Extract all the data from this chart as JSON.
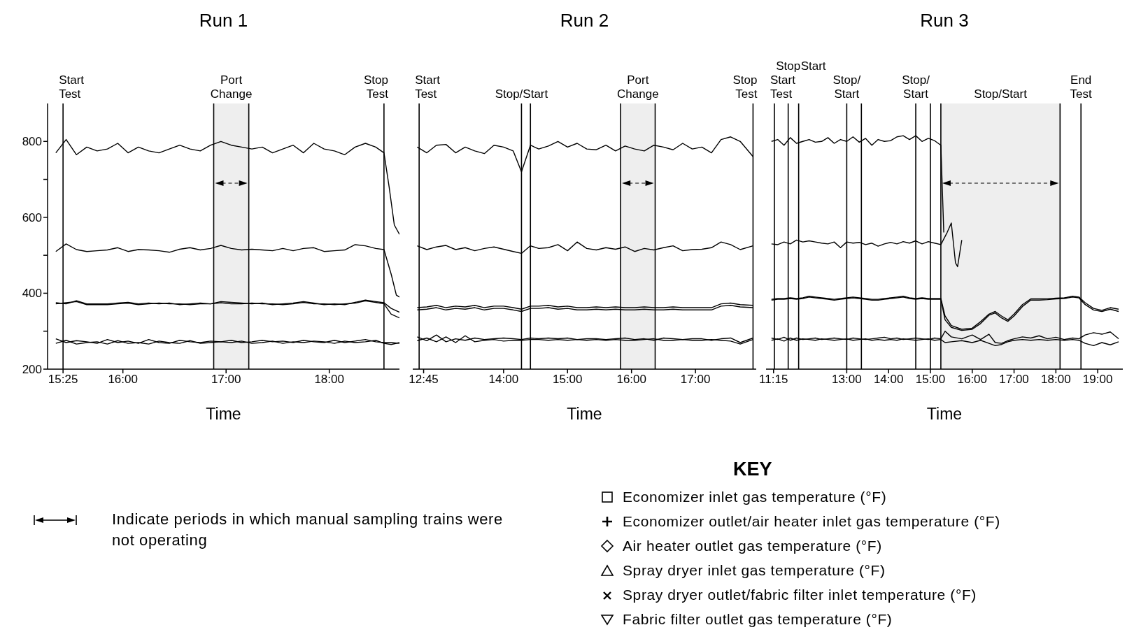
{
  "chart_data": [
    {
      "type": "line",
      "title": "Run 1",
      "xlabel": "Time",
      "xlim": [
        15.27,
        18.68
      ],
      "xticks": [
        {
          "value": 15.42,
          "label": "15:25"
        },
        {
          "value": 16,
          "label": "16:00"
        },
        {
          "value": 17,
          "label": "17:00"
        },
        {
          "value": 18,
          "label": "18:00"
        }
      ],
      "ylim": [
        200,
        900
      ],
      "yticks": [
        200,
        {
          "value": 300,
          "label": null
        },
        400,
        {
          "value": 500,
          "label": null
        },
        600,
        {
          "value": 700,
          "label": null
        },
        800
      ],
      "legend": "bottom right",
      "legend_title": "KEY",
      "annotations": [
        "Indicate periods in which manual sampling trains were not operating"
      ],
      "ref_lines": [
        {
          "axis": "x",
          "value": 15.42,
          "label": "Start\nTest"
        },
        {
          "axis": "x",
          "value": 16.88,
          "label": null
        },
        {
          "axis": "x",
          "value": 17.22,
          "label": null
        },
        {
          "axis": "x",
          "value": 18.53,
          "label": "Stop\nTest"
        }
      ],
      "bands": [
        {
          "axis": "x",
          "from": 16.88,
          "to": 17.22,
          "label": "Port\nChange",
          "color": "#eeeeee"
        }
      ],
      "series": [
        {
          "name": "Economizer inlet gas temperature (°F)",
          "color": "#000000",
          "x": [
            15.35,
            15.45,
            15.55,
            15.65,
            15.75,
            15.85,
            15.95,
            16.05,
            16.15,
            16.25,
            16.35,
            16.45,
            16.55,
            16.65,
            16.75,
            16.85,
            16.95,
            17.05,
            17.15,
            17.25,
            17.35,
            17.45,
            17.55,
            17.65,
            17.75,
            17.85,
            17.95,
            18.05,
            18.15,
            18.25,
            18.35,
            18.45,
            18.53,
            18.58,
            18.63,
            18.68
          ],
          "values": [
            770,
            805,
            765,
            785,
            775,
            780,
            795,
            770,
            785,
            775,
            770,
            780,
            790,
            780,
            775,
            790,
            800,
            790,
            785,
            780,
            785,
            770,
            780,
            790,
            770,
            795,
            780,
            775,
            765,
            785,
            795,
            785,
            770,
            680,
            580,
            555
          ]
        },
        {
          "name": "Economizer outlet/air heater inlet gas temperature (°F)",
          "color": "#000000",
          "x": [
            15.35,
            15.45,
            15.55,
            15.65,
            15.75,
            15.85,
            15.95,
            16.05,
            16.15,
            16.25,
            16.35,
            16.45,
            16.55,
            16.65,
            16.75,
            16.85,
            16.95,
            17.05,
            17.15,
            17.25,
            17.35,
            17.45,
            17.55,
            17.65,
            17.75,
            17.85,
            17.95,
            18.05,
            18.15,
            18.25,
            18.35,
            18.45,
            18.53,
            18.6,
            18.65,
            18.68
          ],
          "values": [
            510,
            530,
            515,
            510,
            512,
            514,
            520,
            510,
            515,
            514,
            512,
            508,
            516,
            520,
            514,
            518,
            526,
            518,
            514,
            516,
            514,
            512,
            518,
            512,
            518,
            520,
            510,
            512,
            514,
            528,
            525,
            518,
            515,
            450,
            395,
            390
          ]
        },
        {
          "name": "Air heater outlet gas temperature (°F)",
          "color": "#000000",
          "x": [
            15.35,
            15.45,
            15.55,
            15.65,
            15.75,
            15.85,
            15.95,
            16.05,
            16.15,
            16.25,
            16.35,
            16.45,
            16.55,
            16.65,
            16.75,
            16.85,
            16.95,
            17.05,
            17.15,
            17.25,
            17.35,
            17.45,
            17.55,
            17.65,
            17.75,
            17.85,
            17.95,
            18.05,
            18.15,
            18.25,
            18.35,
            18.45,
            18.53,
            18.6,
            18.68
          ],
          "values": [
            375,
            372,
            380,
            372,
            372,
            372,
            374,
            376,
            372,
            374,
            372,
            374,
            370,
            372,
            374,
            372,
            378,
            376,
            374,
            372,
            374,
            370,
            372,
            374,
            378,
            374,
            370,
            372,
            370,
            376,
            382,
            378,
            375,
            360,
            350
          ]
        },
        {
          "name": "Spray dryer inlet gas temperature (°F)",
          "color": "#000000",
          "x": [
            15.35,
            15.45,
            15.55,
            15.65,
            15.75,
            15.85,
            15.95,
            16.05,
            16.15,
            16.25,
            16.35,
            16.45,
            16.55,
            16.65,
            16.75,
            16.85,
            16.95,
            17.05,
            17.15,
            17.25,
            17.35,
            17.45,
            17.55,
            17.65,
            17.75,
            17.85,
            17.95,
            18.05,
            18.15,
            18.25,
            18.35,
            18.45,
            18.53,
            18.6,
            18.68
          ],
          "values": [
            372,
            375,
            378,
            370,
            370,
            370,
            372,
            374,
            370,
            372,
            374,
            372,
            372,
            370,
            372,
            372,
            375,
            372,
            372,
            374,
            372,
            372,
            370,
            372,
            376,
            372,
            372,
            370,
            372,
            374,
            380,
            376,
            372,
            345,
            335
          ]
        },
        {
          "name": "Spray dryer outlet/fabric filter inlet temperature (°F)",
          "color": "#000000",
          "x": [
            15.35,
            15.45,
            15.55,
            15.65,
            15.75,
            15.85,
            15.95,
            16.05,
            16.15,
            16.25,
            16.35,
            16.45,
            16.55,
            16.65,
            16.75,
            16.85,
            16.95,
            17.05,
            17.15,
            17.25,
            17.35,
            17.45,
            17.55,
            17.65,
            17.75,
            17.85,
            17.95,
            18.05,
            18.15,
            18.25,
            18.35,
            18.45,
            18.53,
            18.6,
            18.68
          ],
          "values": [
            280,
            270,
            275,
            272,
            268,
            278,
            270,
            274,
            268,
            278,
            270,
            268,
            276,
            272,
            270,
            274,
            272,
            276,
            270,
            272,
            276,
            272,
            274,
            270,
            276,
            272,
            270,
            276,
            270,
            274,
            278,
            272,
            270,
            270,
            268
          ]
        },
        {
          "name": "Fabric filter outlet gas temperature (°F)",
          "color": "#000000",
          "x": [
            15.35,
            15.45,
            15.55,
            15.65,
            15.75,
            15.85,
            15.95,
            16.05,
            16.15,
            16.25,
            16.35,
            16.45,
            16.55,
            16.65,
            16.75,
            16.85,
            16.95,
            17.05,
            17.15,
            17.25,
            17.35,
            17.45,
            17.55,
            17.65,
            17.75,
            17.85,
            17.95,
            18.05,
            18.15,
            18.25,
            18.35,
            18.45,
            18.53,
            18.6,
            18.68
          ],
          "values": [
            268,
            276,
            266,
            270,
            272,
            266,
            275,
            268,
            270,
            266,
            274,
            270,
            268,
            275,
            268,
            270,
            272,
            270,
            274,
            268,
            270,
            274,
            268,
            272,
            270,
            274,
            272,
            268,
            274,
            270,
            272,
            276,
            268,
            265,
            270
          ]
        }
      ]
    },
    {
      "type": "line",
      "title": "Run 2",
      "xlabel": "Time",
      "xlim": [
        12.58,
        17.95
      ],
      "xticks": [
        {
          "value": 12.75,
          "label": "12:45"
        },
        {
          "value": 14,
          "label": "14:00"
        },
        {
          "value": 15,
          "label": "15:00"
        },
        {
          "value": 16,
          "label": "16:00"
        },
        {
          "value": 17,
          "label": "17:00"
        }
      ],
      "ylim": [
        200,
        900
      ],
      "tick_labels": "x",
      "ref_lines": [
        {
          "axis": "x",
          "value": 12.68,
          "label": "Start\nTest"
        },
        {
          "axis": "x",
          "value": 14.28,
          "label": "Stop/Start"
        },
        {
          "axis": "x",
          "value": 14.42,
          "label": null
        },
        {
          "axis": "x",
          "value": 15.83,
          "label": null
        },
        {
          "axis": "x",
          "value": 16.37,
          "label": null
        },
        {
          "axis": "x",
          "value": 17.9,
          "label": "Stop\nTest"
        }
      ],
      "bands": [
        {
          "axis": "x",
          "from": 15.83,
          "to": 16.37,
          "label": "Port\nChange",
          "color": "#eeeeee"
        }
      ],
      "series": [
        {
          "color": "#000000",
          "x": [
            12.65,
            12.8,
            12.95,
            13.1,
            13.25,
            13.4,
            13.55,
            13.7,
            13.85,
            14.0,
            14.15,
            14.28,
            14.42,
            14.55,
            14.7,
            14.85,
            15.0,
            15.15,
            15.3,
            15.45,
            15.6,
            15.75,
            15.9,
            16.05,
            16.2,
            16.35,
            16.5,
            16.65,
            16.8,
            16.95,
            17.1,
            17.25,
            17.4,
            17.55,
            17.7,
            17.9
          ],
          "values": [
            785,
            770,
            790,
            792,
            770,
            785,
            775,
            768,
            790,
            785,
            775,
            720,
            790,
            780,
            788,
            800,
            785,
            795,
            780,
            778,
            790,
            775,
            788,
            780,
            775,
            790,
            785,
            778,
            795,
            780,
            785,
            770,
            805,
            812,
            800,
            760
          ]
        },
        {
          "color": "#000000",
          "x": [
            12.65,
            12.8,
            12.95,
            13.1,
            13.25,
            13.4,
            13.55,
            13.7,
            13.85,
            14.0,
            14.15,
            14.28,
            14.42,
            14.55,
            14.7,
            14.85,
            15.0,
            15.15,
            15.3,
            15.45,
            15.6,
            15.75,
            15.9,
            16.05,
            16.2,
            16.35,
            16.5,
            16.65,
            16.8,
            16.95,
            17.1,
            17.25,
            17.4,
            17.55,
            17.7,
            17.9
          ],
          "values": [
            525,
            515,
            522,
            526,
            515,
            520,
            512,
            518,
            522,
            516,
            510,
            505,
            525,
            518,
            520,
            528,
            512,
            535,
            518,
            514,
            520,
            516,
            522,
            510,
            518,
            514,
            520,
            525,
            512,
            515,
            516,
            520,
            535,
            528,
            515,
            525
          ]
        },
        {
          "color": "#000000",
          "x": [
            12.65,
            12.8,
            12.95,
            13.1,
            13.25,
            13.4,
            13.55,
            13.7,
            13.85,
            14.0,
            14.15,
            14.28,
            14.42,
            14.55,
            14.7,
            14.85,
            15.0,
            15.15,
            15.3,
            15.45,
            15.6,
            15.75,
            15.9,
            16.05,
            16.2,
            16.35,
            16.5,
            16.65,
            16.8,
            16.95,
            17.1,
            17.25,
            17.4,
            17.55,
            17.7,
            17.9
          ],
          "values": [
            362,
            364,
            368,
            362,
            366,
            364,
            368,
            362,
            366,
            366,
            362,
            358,
            366,
            366,
            368,
            364,
            366,
            362,
            362,
            364,
            362,
            364,
            362,
            362,
            364,
            362,
            362,
            364,
            362,
            362,
            362,
            362,
            372,
            374,
            370,
            368
          ]
        },
        {
          "color": "#000000",
          "x": [
            12.65,
            12.8,
            12.95,
            13.1,
            13.25,
            13.4,
            13.55,
            13.7,
            13.85,
            14.0,
            14.15,
            14.28,
            14.42,
            14.55,
            14.7,
            14.85,
            15.0,
            15.15,
            15.3,
            15.45,
            15.6,
            15.75,
            15.9,
            16.05,
            16.2,
            16.35,
            16.5,
            16.65,
            16.8,
            16.95,
            17.1,
            17.25,
            17.4,
            17.55,
            17.7,
            17.9
          ],
          "values": [
            356,
            358,
            362,
            356,
            360,
            358,
            362,
            356,
            360,
            360,
            356,
            352,
            360,
            360,
            362,
            358,
            360,
            356,
            356,
            358,
            356,
            358,
            356,
            356,
            358,
            356,
            356,
            358,
            356,
            356,
            356,
            356,
            366,
            368,
            364,
            362
          ]
        },
        {
          "color": "#000000",
          "x": [
            12.65,
            12.8,
            12.95,
            13.1,
            13.25,
            13.4,
            13.55,
            13.7,
            13.85,
            14.0,
            14.15,
            14.28,
            14.42,
            14.55,
            14.7,
            14.85,
            15.0,
            15.15,
            15.3,
            15.45,
            15.6,
            15.75,
            15.9,
            16.05,
            16.2,
            16.35,
            16.5,
            16.65,
            16.8,
            16.95,
            17.1,
            17.25,
            17.4,
            17.55,
            17.7,
            17.9
          ],
          "values": [
            285,
            275,
            290,
            272,
            280,
            276,
            282,
            278,
            280,
            282,
            280,
            278,
            282,
            280,
            282,
            280,
            282,
            278,
            280,
            280,
            278,
            280,
            282,
            278,
            280,
            276,
            282,
            280,
            278,
            280,
            280,
            276,
            280,
            282,
            270,
            282
          ]
        },
        {
          "color": "#000000",
          "x": [
            12.65,
            12.8,
            12.95,
            13.1,
            13.25,
            13.4,
            13.55,
            13.7,
            13.85,
            14.0,
            14.15,
            14.28,
            14.42,
            14.55,
            14.7,
            14.85,
            15.0,
            15.15,
            15.3,
            15.45,
            15.6,
            15.75,
            15.9,
            16.05,
            16.2,
            16.35,
            16.5,
            16.65,
            16.8,
            16.95,
            17.1,
            17.25,
            17.4,
            17.55,
            17.7,
            17.9
          ],
          "values": [
            275,
            282,
            272,
            285,
            270,
            288,
            272,
            276,
            278,
            274,
            276,
            276,
            278,
            278,
            276,
            278,
            276,
            278,
            276,
            278,
            276,
            278,
            276,
            276,
            278,
            280,
            276,
            276,
            278,
            276,
            276,
            278,
            276,
            274,
            266,
            278
          ]
        }
      ]
    },
    {
      "type": "line",
      "title": "Run 3",
      "xlabel": "Time",
      "xlim": [
        11.07,
        19.6
      ],
      "xticks": [
        {
          "value": 11.25,
          "label": "11:15"
        },
        {
          "value": 13,
          "label": "13:00"
        },
        {
          "value": 14,
          "label": "14:00"
        },
        {
          "value": 15,
          "label": "15:00"
        },
        {
          "value": 16,
          "label": "16:00"
        },
        {
          "value": 17,
          "label": "17:00"
        },
        {
          "value": 18,
          "label": "18:00"
        },
        {
          "value": 19,
          "label": "19:00"
        }
      ],
      "ylim": [
        200,
        900
      ],
      "tick_labels": "x",
      "ref_lines": [
        {
          "axis": "x",
          "value": 11.27,
          "label": "Start\nTest"
        },
        {
          "axis": "x",
          "value": 11.6,
          "label": "Stop"
        },
        {
          "axis": "x",
          "value": 11.85,
          "label": "Start"
        },
        {
          "axis": "x",
          "value": 13.0,
          "label": "Stop/\nStart"
        },
        {
          "axis": "x",
          "value": 13.35,
          "label": null
        },
        {
          "axis": "x",
          "value": 14.65,
          "label": "Stop/\nStart"
        },
        {
          "axis": "x",
          "value": 15.0,
          "label": null
        },
        {
          "axis": "x",
          "value": 15.25,
          "label": null
        },
        {
          "axis": "x",
          "value": 18.1,
          "label": null
        },
        {
          "axis": "x",
          "value": 18.6,
          "label": "End\nTest"
        }
      ],
      "bands": [
        {
          "axis": "x",
          "from": 15.25,
          "to": 18.1,
          "label": "Stop/Start",
          "color": "#eeeeee"
        }
      ],
      "series": [
        {
          "color": "#000000",
          "x": [
            11.2,
            11.35,
            11.5,
            11.65,
            11.8,
            11.95,
            12.1,
            12.25,
            12.4,
            12.55,
            12.7,
            12.85,
            13.0,
            13.15,
            13.3,
            13.45,
            13.6,
            13.75,
            13.9,
            14.05,
            14.2,
            14.35,
            14.5,
            14.65,
            14.8,
            14.95,
            15.1,
            15.25,
            15.32
          ],
          "values": [
            800,
            805,
            790,
            810,
            795,
            800,
            805,
            798,
            800,
            810,
            795,
            805,
            800,
            812,
            798,
            808,
            790,
            805,
            800,
            802,
            812,
            815,
            805,
            815,
            800,
            808,
            802,
            790,
            560
          ]
        },
        {
          "color": "#000000",
          "x": [
            11.2,
            11.35,
            11.5,
            11.65,
            11.8,
            11.95,
            12.1,
            12.25,
            12.4,
            12.55,
            12.7,
            12.85,
            13.0,
            13.15,
            13.3,
            13.45,
            13.6,
            13.75,
            13.9,
            14.05,
            14.2,
            14.35,
            14.5,
            14.65,
            14.8,
            14.95,
            15.1,
            15.25,
            15.4,
            15.5,
            15.6,
            15.65,
            15.75
          ],
          "values": [
            530,
            528,
            535,
            530,
            540,
            535,
            538,
            535,
            532,
            530,
            535,
            520,
            535,
            532,
            534,
            528,
            532,
            524,
            530,
            534,
            530,
            536,
            532,
            538,
            530,
            536,
            532,
            528,
            560,
            585,
            480,
            470,
            540
          ]
        },
        {
          "color": "#000000",
          "x": [
            11.2,
            11.35,
            11.5,
            11.65,
            11.8,
            11.95,
            12.1,
            12.25,
            12.4,
            12.55,
            12.7,
            12.85,
            13.0,
            13.15,
            13.3,
            13.45,
            13.6,
            13.75,
            13.9,
            14.05,
            14.2,
            14.35,
            14.5,
            14.65,
            14.8,
            14.95,
            15.1,
            15.25,
            15.35,
            15.5,
            15.75,
            16.0,
            16.2,
            16.4,
            16.55,
            16.7,
            16.85,
            17.0,
            17.2,
            17.4,
            17.6,
            17.8,
            18.0,
            18.2,
            18.4,
            18.55,
            18.7,
            18.9,
            19.1,
            19.3,
            19.5
          ],
          "values": [
            384,
            386,
            386,
            388,
            386,
            388,
            392,
            390,
            388,
            386,
            384,
            386,
            388,
            390,
            388,
            386,
            384,
            384,
            386,
            388,
            390,
            392,
            388,
            386,
            388,
            386,
            386,
            386,
            340,
            315,
            305,
            308,
            325,
            345,
            352,
            340,
            330,
            345,
            370,
            385,
            385,
            385,
            387,
            388,
            392,
            390,
            375,
            360,
            355,
            362,
            358
          ]
        },
        {
          "color": "#000000",
          "x": [
            11.2,
            11.35,
            11.5,
            11.65,
            11.8,
            11.95,
            12.1,
            12.25,
            12.4,
            12.55,
            12.7,
            12.85,
            13.0,
            13.15,
            13.3,
            13.45,
            13.6,
            13.75,
            13.9,
            14.05,
            14.2,
            14.35,
            14.5,
            14.65,
            14.8,
            14.95,
            15.1,
            15.25,
            15.35,
            15.5,
            15.75,
            16.0,
            16.2,
            16.4,
            16.55,
            16.7,
            16.85,
            17.0,
            17.2,
            17.4,
            17.6,
            17.8,
            18.0,
            18.2,
            18.4,
            18.55,
            18.7,
            18.9,
            19.1,
            19.3,
            19.5
          ],
          "values": [
            382,
            384,
            384,
            386,
            384,
            386,
            390,
            388,
            386,
            384,
            382,
            384,
            386,
            388,
            386,
            384,
            382,
            382,
            384,
            386,
            388,
            390,
            386,
            384,
            386,
            384,
            384,
            384,
            330,
            310,
            302,
            305,
            320,
            342,
            348,
            335,
            326,
            340,
            365,
            382,
            382,
            383,
            385,
            386,
            390,
            388,
            370,
            356,
            352,
            358,
            352
          ]
        },
        {
          "color": "#000000",
          "x": [
            11.2,
            11.35,
            11.5,
            11.65,
            11.8,
            11.95,
            12.1,
            12.25,
            12.4,
            12.55,
            12.7,
            12.85,
            13.0,
            13.15,
            13.3,
            13.45,
            13.6,
            13.75,
            13.9,
            14.05,
            14.2,
            14.35,
            14.5,
            14.65,
            14.8,
            14.95,
            15.1,
            15.25,
            15.35,
            15.5,
            15.75,
            16.0,
            16.2,
            16.4,
            16.55,
            16.7,
            16.85,
            17.0,
            17.2,
            17.4,
            17.6,
            17.8,
            18.0,
            18.2,
            18.4,
            18.55,
            18.7,
            18.9,
            19.1,
            19.3,
            19.5
          ],
          "values": [
            282,
            278,
            284,
            276,
            282,
            278,
            280,
            282,
            278,
            280,
            282,
            280,
            278,
            282,
            280,
            278,
            280,
            282,
            284,
            280,
            282,
            278,
            280,
            282,
            280,
            278,
            282,
            280,
            300,
            285,
            280,
            290,
            278,
            292,
            270,
            268,
            275,
            280,
            285,
            282,
            288,
            280,
            284,
            278,
            282,
            280,
            290,
            296,
            292,
            298,
            280
          ]
        },
        {
          "color": "#000000",
          "x": [
            11.2,
            11.35,
            11.5,
            11.65,
            11.8,
            11.95,
            12.1,
            12.25,
            12.4,
            12.55,
            12.7,
            12.85,
            13.0,
            13.15,
            13.3,
            13.45,
            13.6,
            13.75,
            13.9,
            14.05,
            14.2,
            14.35,
            14.5,
            14.65,
            14.8,
            14.95,
            15.1,
            15.25,
            15.35,
            15.5,
            15.75,
            16.0,
            16.2,
            16.4,
            16.55,
            16.7,
            16.85,
            17.0,
            17.2,
            17.4,
            17.6,
            17.8,
            18.0,
            18.2,
            18.4,
            18.55,
            18.7,
            18.9,
            19.1,
            19.3,
            19.5
          ],
          "values": [
            276,
            280,
            274,
            282,
            276,
            280,
            278,
            276,
            280,
            278,
            276,
            278,
            280,
            276,
            278,
            280,
            276,
            278,
            276,
            278,
            276,
            280,
            278,
            276,
            278,
            280,
            276,
            278,
            270,
            272,
            275,
            270,
            276,
            268,
            262,
            265,
            272,
            276,
            278,
            276,
            278,
            276,
            278,
            276,
            278,
            276,
            268,
            262,
            270,
            264,
            272
          ]
        }
      ]
    }
  ]
}
